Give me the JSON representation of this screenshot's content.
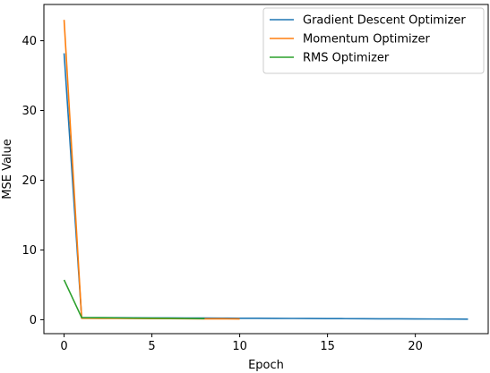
{
  "chart_data": {
    "type": "line",
    "title": "",
    "xlabel": "Epoch",
    "ylabel": "MSE Value",
    "xlim": [
      -1.15,
      24.15
    ],
    "ylim": [
      -2.0,
      45.2
    ],
    "xticks": [
      0,
      5,
      10,
      15,
      20
    ],
    "yticks": [
      0,
      10,
      20,
      30,
      40
    ],
    "legend_position": "top-right",
    "grid": false,
    "series": [
      {
        "name": "Gradient Descent Optimizer",
        "color": "#1f77b4",
        "x": [
          0,
          1,
          2,
          3,
          4,
          5,
          6,
          7,
          8,
          9,
          10,
          11,
          12,
          13,
          14,
          15,
          16,
          17,
          18,
          19,
          20,
          21,
          22,
          23
        ],
        "y": [
          38.2,
          0.3,
          0.29,
          0.28,
          0.27,
          0.26,
          0.25,
          0.24,
          0.23,
          0.22,
          0.21,
          0.2,
          0.19,
          0.18,
          0.17,
          0.16,
          0.15,
          0.14,
          0.13,
          0.12,
          0.11,
          0.1,
          0.09,
          0.08
        ]
      },
      {
        "name": "Momentum Optimizer",
        "color": "#ff7f0e",
        "x": [
          0,
          1,
          2,
          3,
          4,
          5,
          6,
          7,
          8,
          9,
          10
        ],
        "y": [
          43.0,
          0.2,
          0.19,
          0.18,
          0.17,
          0.16,
          0.15,
          0.14,
          0.13,
          0.12,
          0.11
        ]
      },
      {
        "name": "RMS Optimizer",
        "color": "#2ca02c",
        "x": [
          0,
          1,
          2,
          3,
          4,
          5,
          6,
          7,
          8
        ],
        "y": [
          5.7,
          0.3,
          0.28,
          0.26,
          0.24,
          0.22,
          0.2,
          0.18,
          0.16
        ]
      }
    ]
  }
}
